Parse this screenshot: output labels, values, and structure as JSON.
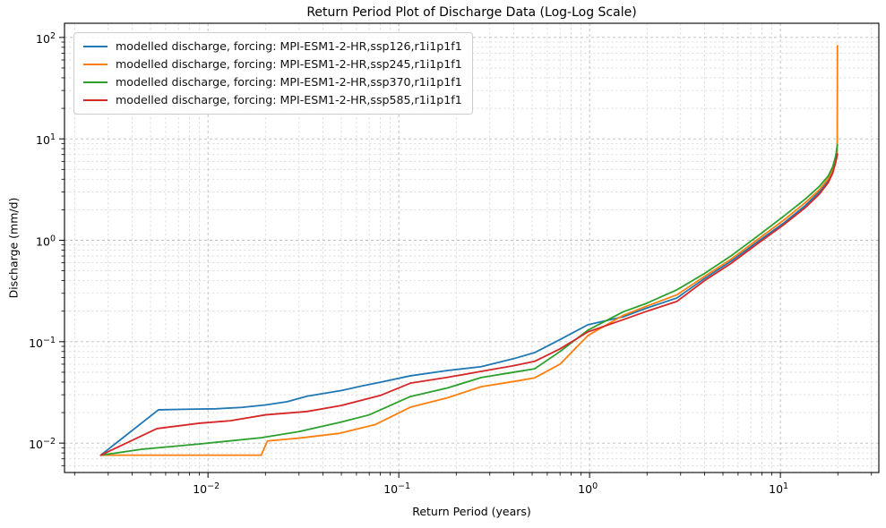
{
  "figure": {
    "title": "Return Period Plot of Discharge Data (Log-Log Scale)"
  },
  "chart_data": {
    "type": "line",
    "title": "Return Period Plot of Discharge Data (Log-Log Scale)",
    "xlabel": "Return Period (years)",
    "ylabel": "Discharge (mm/d)",
    "x_scale": "log",
    "y_scale": "log",
    "xlim": [
      0.00177,
      32.8
    ],
    "ylim": [
      0.00513,
      138
    ],
    "x_tick_exponents": [
      -2,
      -1,
      0,
      1
    ],
    "y_tick_exponents": [
      -2,
      -1,
      0,
      1,
      2
    ],
    "grid": {
      "which": "major+minor",
      "style": "dashed",
      "major_color": "#bcbcbc",
      "minor_color": "#d9d9d9"
    },
    "legend_position": "upper left",
    "series": [
      {
        "name": "ssp126",
        "label": "modelled discharge, forcing: MPI-ESM1-2-HR,ssp126,r1i1p1f1",
        "color": "#1f77b4",
        "points": [
          [
            0.00274,
            0.0076
          ],
          [
            0.0055,
            0.0213
          ],
          [
            0.008,
            0.0216
          ],
          [
            0.011,
            0.0218
          ],
          [
            0.015,
            0.0225
          ],
          [
            0.02,
            0.0238
          ],
          [
            0.026,
            0.0256
          ],
          [
            0.033,
            0.029
          ],
          [
            0.05,
            0.033
          ],
          [
            0.065,
            0.0368
          ],
          [
            0.08,
            0.0398
          ],
          [
            0.115,
            0.0461
          ],
          [
            0.18,
            0.052
          ],
          [
            0.27,
            0.0567
          ],
          [
            0.4,
            0.068
          ],
          [
            0.515,
            0.078
          ],
          [
            0.7,
            0.105
          ],
          [
            0.98,
            0.147
          ],
          [
            1.5,
            0.176
          ],
          [
            2.0,
            0.215
          ],
          [
            2.87,
            0.27
          ],
          [
            4.0,
            0.42
          ],
          [
            5.5,
            0.62
          ],
          [
            7.5,
            0.95
          ],
          [
            10.5,
            1.5
          ],
          [
            13.5,
            2.2
          ],
          [
            16.0,
            3.0
          ],
          [
            17.8,
            3.85
          ],
          [
            18.8,
            4.8
          ],
          [
            19.5,
            6.1
          ],
          [
            19.9,
            7.0
          ]
        ]
      },
      {
        "name": "ssp245",
        "label": "modelled discharge, forcing: MPI-ESM1-2-HR,ssp245,r1i1p1f1",
        "color": "#ff7f0e",
        "points": [
          [
            0.00274,
            0.0076
          ],
          [
            0.019,
            0.0076
          ],
          [
            0.0205,
            0.0105
          ],
          [
            0.03,
            0.0112
          ],
          [
            0.049,
            0.0125
          ],
          [
            0.075,
            0.0152
          ],
          [
            0.115,
            0.0226
          ],
          [
            0.18,
            0.028
          ],
          [
            0.27,
            0.036
          ],
          [
            0.4,
            0.0405
          ],
          [
            0.515,
            0.044
          ],
          [
            0.7,
            0.06
          ],
          [
            0.98,
            0.115
          ],
          [
            1.5,
            0.182
          ],
          [
            2.0,
            0.225
          ],
          [
            2.87,
            0.29
          ],
          [
            4.0,
            0.44
          ],
          [
            5.5,
            0.65
          ],
          [
            7.5,
            1.0
          ],
          [
            10.5,
            1.6
          ],
          [
            13.5,
            2.35
          ],
          [
            16.0,
            3.15
          ],
          [
            17.8,
            4.05
          ],
          [
            18.8,
            5.05
          ],
          [
            19.5,
            6.4
          ],
          [
            19.85,
            7.5
          ],
          [
            19.9,
            83
          ]
        ]
      },
      {
        "name": "ssp370",
        "label": "modelled discharge, forcing: MPI-ESM1-2-HR,ssp370,r1i1p1f1",
        "color": "#2ca02c",
        "points": [
          [
            0.00274,
            0.0076
          ],
          [
            0.0045,
            0.0087
          ],
          [
            0.009,
            0.0098
          ],
          [
            0.019,
            0.0113
          ],
          [
            0.03,
            0.013
          ],
          [
            0.049,
            0.016
          ],
          [
            0.07,
            0.019
          ],
          [
            0.115,
            0.0288
          ],
          [
            0.18,
            0.035
          ],
          [
            0.27,
            0.0443
          ],
          [
            0.4,
            0.05
          ],
          [
            0.515,
            0.054
          ],
          [
            0.7,
            0.08
          ],
          [
            0.98,
            0.13
          ],
          [
            1.5,
            0.197
          ],
          [
            2.0,
            0.24
          ],
          [
            2.87,
            0.325
          ],
          [
            4.0,
            0.47
          ],
          [
            5.5,
            0.7
          ],
          [
            7.5,
            1.08
          ],
          [
            10.5,
            1.75
          ],
          [
            13.5,
            2.55
          ],
          [
            16.0,
            3.4
          ],
          [
            17.8,
            4.3
          ],
          [
            18.8,
            5.3
          ],
          [
            19.5,
            6.8
          ],
          [
            19.9,
            8.8
          ]
        ]
      },
      {
        "name": "ssp585",
        "label": "modelled discharge, forcing: MPI-ESM1-2-HR,ssp585,r1i1p1f1",
        "color": "#d62728",
        "points": [
          [
            0.00274,
            0.0076
          ],
          [
            0.0054,
            0.0139
          ],
          [
            0.009,
            0.0157
          ],
          [
            0.013,
            0.0166
          ],
          [
            0.02,
            0.019
          ],
          [
            0.033,
            0.0205
          ],
          [
            0.05,
            0.0235
          ],
          [
            0.08,
            0.0295
          ],
          [
            0.115,
            0.039
          ],
          [
            0.18,
            0.0445
          ],
          [
            0.27,
            0.051
          ],
          [
            0.4,
            0.058
          ],
          [
            0.515,
            0.064
          ],
          [
            0.7,
            0.085
          ],
          [
            0.98,
            0.125
          ],
          [
            1.5,
            0.165
          ],
          [
            2.0,
            0.2
          ],
          [
            2.87,
            0.25
          ],
          [
            4.0,
            0.4
          ],
          [
            5.5,
            0.59
          ],
          [
            7.5,
            0.91
          ],
          [
            10.5,
            1.44
          ],
          [
            13.5,
            2.1
          ],
          [
            16.0,
            2.85
          ],
          [
            17.8,
            3.7
          ],
          [
            18.8,
            4.6
          ],
          [
            19.5,
            5.9
          ],
          [
            19.9,
            7.1
          ]
        ]
      }
    ]
  }
}
